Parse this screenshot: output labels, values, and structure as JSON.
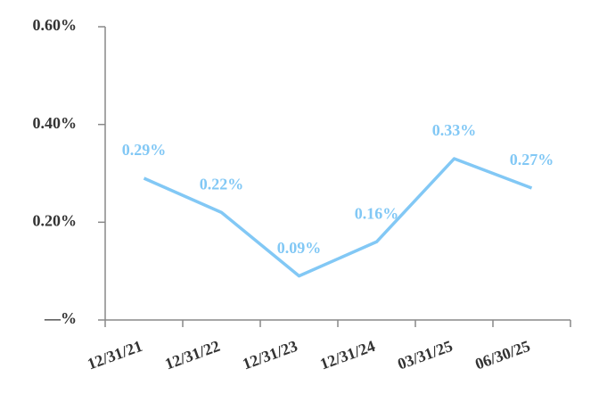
{
  "chart_data": {
    "type": "line",
    "categories": [
      "12/31/21",
      "12/31/22",
      "12/31/23",
      "12/31/24",
      "03/31/25",
      "06/30/25"
    ],
    "values": [
      0.29,
      0.22,
      0.09,
      0.16,
      0.33,
      0.27
    ],
    "value_labels": [
      "0.29%",
      "0.22%",
      "0.09%",
      "0.16%",
      "0.33%",
      "0.27%"
    ],
    "color": "#82c8f5",
    "ylim": [
      0,
      0.6
    ],
    "yticks": [
      {
        "value": 0,
        "label": "—%"
      },
      {
        "value": 0.2,
        "label": "0.20%"
      },
      {
        "value": 0.4,
        "label": "0.40%"
      },
      {
        "value": 0.6,
        "label": "0.60%"
      }
    ],
    "grid": false
  }
}
